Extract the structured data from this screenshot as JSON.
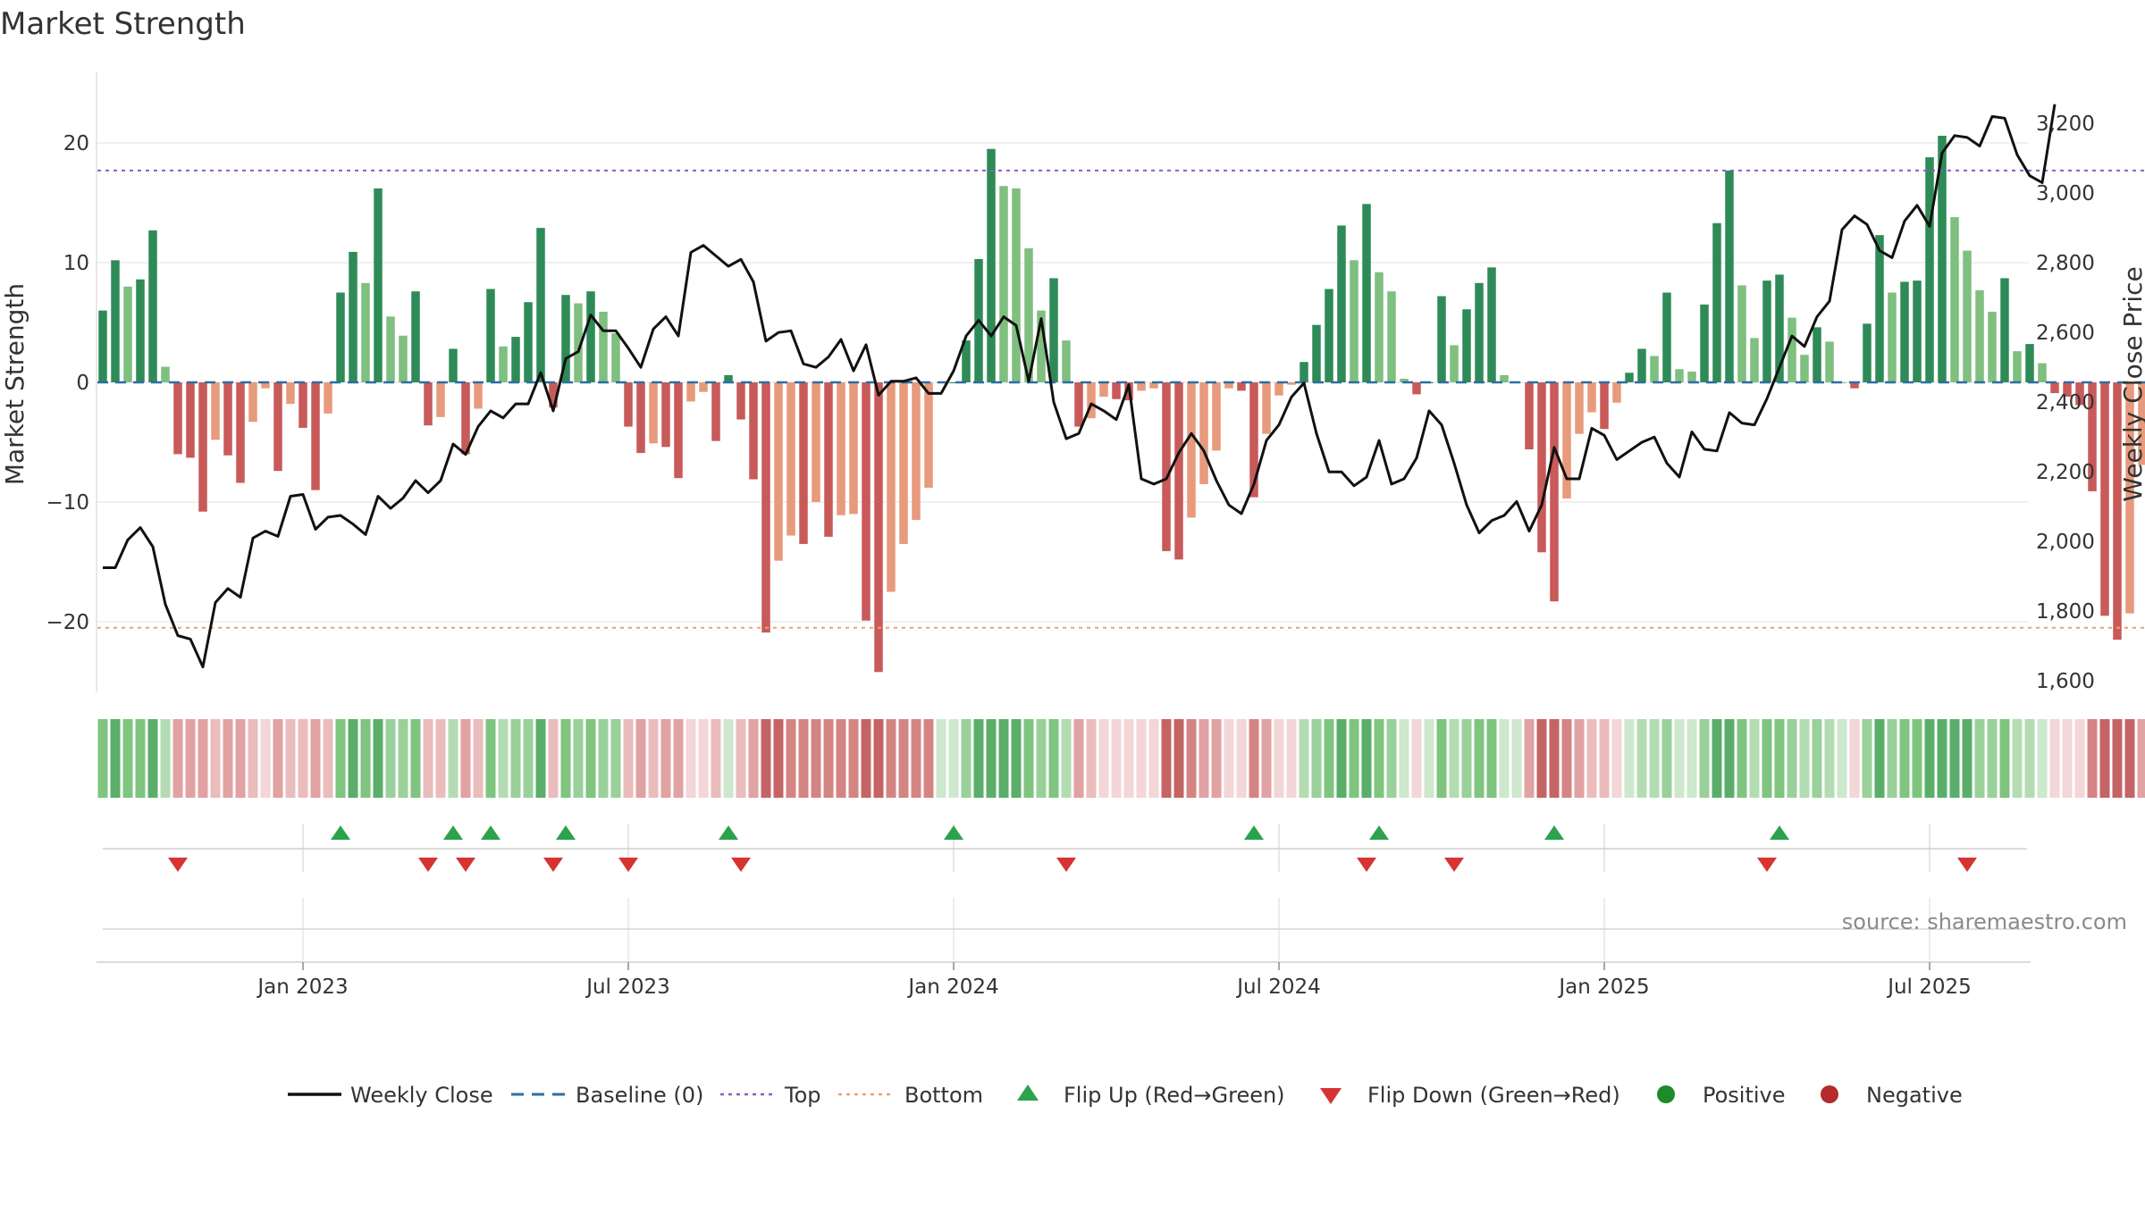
{
  "title": "Market Strength",
  "source": "source: sharemaestro.com",
  "chart_data": {
    "type": "bar+line",
    "title": "Market Strength",
    "ylabel_left": "Market Strength",
    "ylabel_right": "Weekly Close Price",
    "ylim_left": [
      -26,
      26
    ],
    "ylim_right": [
      1580,
      3340
    ],
    "yticks_left": [
      {
        "value": 20,
        "label": "20"
      },
      {
        "value": 10,
        "label": "10"
      },
      {
        "value": 0,
        "label": "0"
      },
      {
        "value": -10,
        "label": "−10"
      },
      {
        "value": -20,
        "label": "−20"
      }
    ],
    "yticks_right": [
      {
        "value": 3200,
        "label": "3,200"
      },
      {
        "value": 3000,
        "label": "3,000"
      },
      {
        "value": 2800,
        "label": "2,800"
      },
      {
        "value": 2600,
        "label": "2,600"
      },
      {
        "value": 2400,
        "label": "2,400"
      },
      {
        "value": 2200,
        "label": "2,200"
      },
      {
        "value": 2000,
        "label": "2,000"
      },
      {
        "value": 1800,
        "label": "1,800"
      },
      {
        "value": 1600,
        "label": "1,600"
      }
    ],
    "xticks": [
      {
        "week": 16,
        "label": "Jan 2023"
      },
      {
        "week": 42,
        "label": "Jul 2023"
      },
      {
        "week": 68,
        "label": "Jan 2024"
      },
      {
        "week": 94,
        "label": "Jul 2024"
      },
      {
        "week": 120,
        "label": "Jan 2025"
      },
      {
        "week": 146,
        "label": "Jul 2025"
      }
    ],
    "top_level": 17.7,
    "bottom_level": -20.5,
    "baseline": 0,
    "strength": [
      6,
      10.2,
      8,
      8.6,
      12.7,
      1.3,
      -6,
      -6.3,
      -10.8,
      -4.8,
      -6.1,
      -8.4,
      -3.3,
      -0.5,
      -7.4,
      -1.8,
      -3.8,
      -9,
      -2.6,
      7.5,
      10.9,
      8.3,
      16.2,
      5.5,
      3.9,
      7.6,
      -3.6,
      -2.9,
      2.8,
      -6,
      -2.2,
      7.8,
      3,
      3.8,
      6.7,
      12.9,
      -2.1,
      7.3,
      6.6,
      7.6,
      5.9,
      4.1,
      -3.7,
      -5.9,
      -5.1,
      -5.4,
      -8,
      -1.6,
      -0.8,
      -4.9,
      0.6,
      -3.1,
      -8.1,
      -20.9,
      -14.9,
      -12.8,
      -13.5,
      -10,
      -12.9,
      -11.1,
      -11,
      -19.9,
      -24.2,
      -17.5,
      -13.5,
      -11.5,
      -8.8,
      0,
      0,
      3.5,
      10.3,
      19.5,
      16.4,
      16.2,
      11.2,
      6,
      8.7,
      3.5,
      -3.7,
      -3,
      -1.2,
      -1.4,
      -1.5,
      -0.7,
      -0.5,
      -14.1,
      -14.8,
      -11.3,
      -8.5,
      -5.7,
      -0.5,
      -0.7,
      -9.6,
      -4.3,
      -1.1,
      -0.2,
      1.7,
      4.8,
      7.8,
      13.1,
      10.2,
      14.9,
      9.2,
      7.6,
      0.3,
      -1,
      0,
      7.2,
      3.1,
      6.1,
      8.3,
      9.6,
      0.6,
      0,
      -5.6,
      -14.2,
      -18.3,
      -9.7,
      -4.3,
      -2.5,
      -3.9,
      -1.7,
      0.8,
      2.8,
      2.2,
      7.5,
      1.1,
      0.9,
      6.5,
      13.3,
      17.7,
      8.1,
      3.7,
      8.5,
      9,
      5.4,
      2.3,
      4.6,
      3.4,
      0,
      -0.5,
      4.9,
      12.3,
      7.5,
      8.4,
      8.5,
      18.8,
      20.6,
      13.8,
      11,
      7.7,
      5.9,
      8.7,
      2.6,
      3.2,
      1.6,
      -0.9,
      -1.2,
      -1.9,
      -9.1,
      -19.5,
      -21.5,
      -19.3,
      -6.9
    ],
    "close": [
      1925,
      1925,
      2005,
      2040,
      1985,
      1820,
      1730,
      1720,
      1640,
      1825,
      1865,
      1840,
      2010,
      2030,
      2015,
      2130,
      2135,
      2035,
      2070,
      2075,
      2050,
      2020,
      2130,
      2095,
      2125,
      2175,
      2140,
      2175,
      2280,
      2250,
      2330,
      2375,
      2355,
      2395,
      2395,
      2485,
      2375,
      2525,
      2545,
      2650,
      2605,
      2605,
      2555,
      2500,
      2610,
      2645,
      2590,
      2830,
      2850,
      2820,
      2790,
      2810,
      2745,
      2575,
      2600,
      2605,
      2510,
      2500,
      2530,
      2580,
      2490,
      2565,
      2420,
      2460,
      2460,
      2470,
      2425,
      2425,
      2490,
      2590,
      2635,
      2590,
      2645,
      2620,
      2460,
      2640,
      2400,
      2295,
      2310,
      2395,
      2375,
      2350,
      2450,
      2180,
      2165,
      2180,
      2255,
      2310,
      2260,
      2175,
      2105,
      2080,
      2165,
      2290,
      2335,
      2415,
      2455,
      2310,
      2200,
      2200,
      2160,
      2185,
      2290,
      2165,
      2180,
      2240,
      2375,
      2335,
      2225,
      2105,
      2025,
      2060,
      2075,
      2115,
      2030,
      2105,
      2270,
      2180,
      2180,
      2325,
      2305,
      2235,
      2260,
      2285,
      2300,
      2225,
      2185,
      2315,
      2265,
      2260,
      2370,
      2340,
      2335,
      2410,
      2500,
      2590,
      2560,
      2645,
      2690,
      2895,
      2935,
      2910,
      2835,
      2815,
      2920,
      2965,
      2905,
      3115,
      3165,
      3160,
      3135,
      3220,
      3215,
      3110,
      3050,
      3030,
      3255
    ],
    "heat_shade": [
      4,
      5,
      4,
      4,
      5,
      2,
      -3,
      -3,
      -3,
      -2,
      -3,
      -3,
      -2,
      -1,
      -3,
      -2,
      -2,
      -3,
      -2,
      4,
      5,
      4,
      5,
      3,
      3,
      4,
      -2,
      -2,
      2,
      -3,
      -2,
      4,
      2,
      3,
      3,
      5,
      -2,
      4,
      3,
      4,
      3,
      3,
      -2,
      -3,
      -2,
      -3,
      -3,
      -1,
      -1,
      -2,
      1,
      -2,
      -3,
      -5,
      -5,
      -4,
      -4,
      -4,
      -4,
      -4,
      -4,
      -5,
      -5,
      -4,
      -4,
      -4,
      -4,
      1,
      1,
      3,
      5,
      5,
      5,
      5,
      4,
      3,
      4,
      2,
      -3,
      -2,
      -1,
      -1,
      -1,
      -1,
      -1,
      -5,
      -5,
      -4,
      -3,
      -3,
      -1,
      -1,
      -4,
      -3,
      -1,
      -1,
      2,
      3,
      4,
      5,
      4,
      5,
      4,
      3,
      1,
      -1,
      1,
      4,
      2,
      3,
      4,
      4,
      1,
      1,
      -3,
      -5,
      -5,
      -4,
      -3,
      -2,
      -2,
      -1,
      1,
      2,
      2,
      3,
      1,
      1,
      3,
      5,
      5,
      4,
      2,
      4,
      4,
      3,
      2,
      3,
      2,
      1,
      -1,
      3,
      5,
      3,
      4,
      4,
      5,
      5,
      5,
      5,
      3,
      3,
      4,
      2,
      2,
      1,
      -1,
      -1,
      -1,
      -4,
      -5,
      -5,
      -5,
      -3
    ],
    "flip_up": [
      19,
      28,
      31,
      37,
      50,
      68,
      92,
      102,
      116,
      134
    ],
    "flip_down": [
      6,
      26,
      29,
      36,
      42,
      51,
      77,
      101,
      108,
      133,
      149
    ],
    "legend": [
      {
        "key": "close",
        "label": "Weekly Close",
        "color": "#111111"
      },
      {
        "key": "baseline",
        "label": "Baseline (0)",
        "color": "#2e6da4"
      },
      {
        "key": "top",
        "label": "Top",
        "color": "#8e5dbf"
      },
      {
        "key": "bottom",
        "label": "Bottom",
        "color": "#f0a06a"
      },
      {
        "key": "flip_up",
        "label": "Flip Up (Red→Green)",
        "color": "#2ca24c"
      },
      {
        "key": "flip_down",
        "label": "Flip Down (Green→Red)",
        "color": "#d63333"
      },
      {
        "key": "positive",
        "label": "Positive",
        "color": "#1f8a2a"
      },
      {
        "key": "negative",
        "label": "Negative",
        "color": "#b52a2a"
      }
    ],
    "colors": {
      "green_strong": "#2e8b57",
      "green_light": "#7fbf7f",
      "red_strong": "#c85a5a",
      "red_light": "#e89a7c",
      "grid": "#ebebeb"
    }
  }
}
